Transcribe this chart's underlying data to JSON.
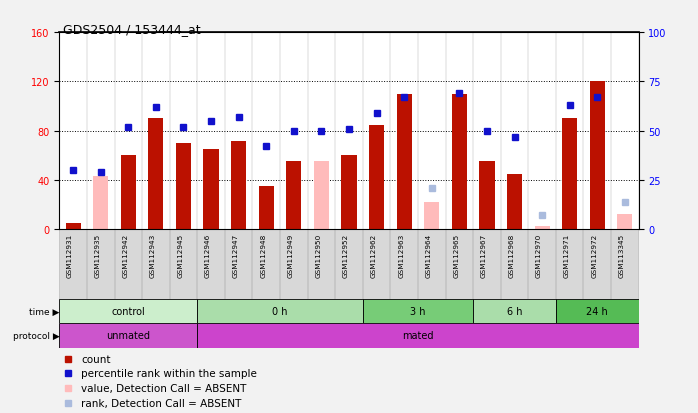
{
  "title": "GDS2504 / 153444_at",
  "samples": [
    "GSM112931",
    "GSM112935",
    "GSM112942",
    "GSM112943",
    "GSM112945",
    "GSM112946",
    "GSM112947",
    "GSM112948",
    "GSM112949",
    "GSM112950",
    "GSM112952",
    "GSM112962",
    "GSM112963",
    "GSM112964",
    "GSM112965",
    "GSM112967",
    "GSM112968",
    "GSM112970",
    "GSM112971",
    "GSM112972",
    "GSM113345"
  ],
  "bar_values": [
    5,
    null,
    60,
    90,
    70,
    65,
    72,
    35,
    55,
    null,
    60,
    85,
    110,
    null,
    110,
    55,
    45,
    null,
    90,
    120,
    null
  ],
  "bar_absent": [
    null,
    43,
    null,
    null,
    null,
    null,
    null,
    null,
    null,
    55,
    null,
    null,
    null,
    22,
    null,
    null,
    null,
    3,
    null,
    null,
    12
  ],
  "rank_values": [
    30,
    29,
    52,
    62,
    52,
    55,
    57,
    42,
    50,
    50,
    51,
    59,
    67,
    null,
    69,
    50,
    47,
    null,
    63,
    67,
    null
  ],
  "rank_absent": [
    null,
    null,
    null,
    null,
    null,
    null,
    null,
    null,
    null,
    null,
    null,
    null,
    null,
    21,
    null,
    null,
    null,
    7,
    null,
    null,
    14
  ],
  "ylim_left": [
    0,
    160
  ],
  "ylim_right": [
    0,
    100
  ],
  "yticks_left": [
    0,
    40,
    80,
    120,
    160
  ],
  "yticks_right": [
    0,
    25,
    50,
    75,
    100
  ],
  "bar_color": "#bb1100",
  "bar_absent_color": "#ffbbbb",
  "rank_color": "#1111cc",
  "rank_absent_color": "#aabbdd",
  "time_groups": [
    {
      "label": "control",
      "start": 0,
      "end": 5,
      "color": "#cceecc"
    },
    {
      "label": "0 h",
      "start": 5,
      "end": 11,
      "color": "#aaddaa"
    },
    {
      "label": "3 h",
      "start": 11,
      "end": 15,
      "color": "#77cc77"
    },
    {
      "label": "6 h",
      "start": 15,
      "end": 18,
      "color": "#aaddaa"
    },
    {
      "label": "24 h",
      "start": 18,
      "end": 21,
      "color": "#55bb55"
    }
  ],
  "protocol_groups": [
    {
      "label": "unmated",
      "start": 0,
      "end": 5,
      "color": "#cc55cc"
    },
    {
      "label": "mated",
      "start": 5,
      "end": 21,
      "color": "#cc44cc"
    }
  ],
  "n_samples": 21
}
